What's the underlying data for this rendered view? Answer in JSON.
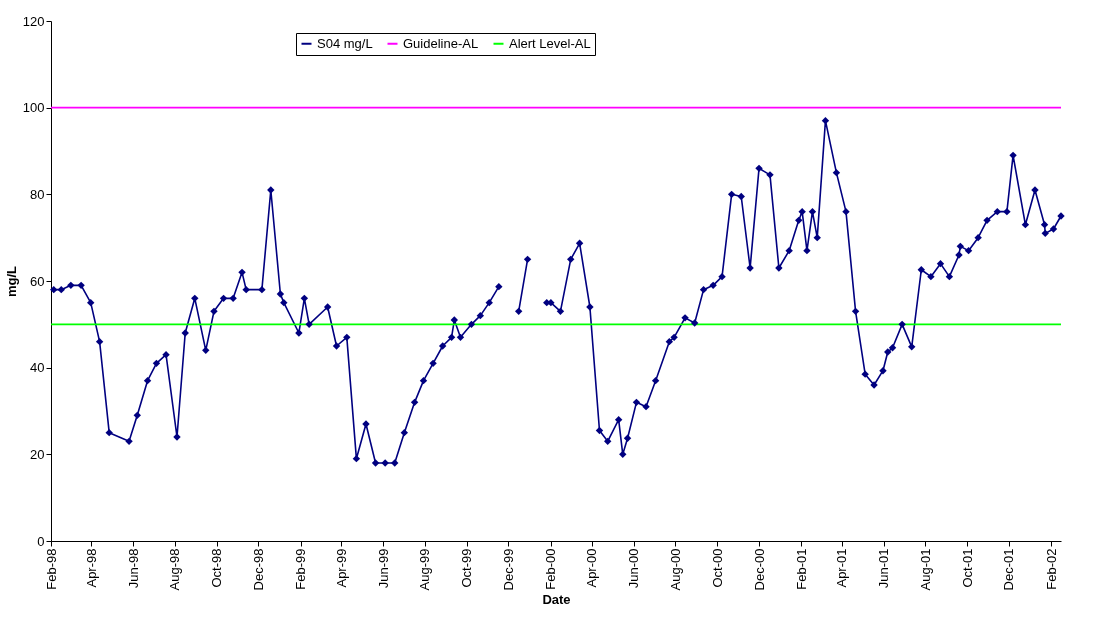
{
  "chart_data": {
    "type": "line",
    "xlabel": "Date",
    "ylabel": "mg/L",
    "xlim": [
      "1998-02-01",
      "2002-02-15"
    ],
    "ylim": [
      0,
      120
    ],
    "yticks": [
      0,
      20,
      40,
      60,
      80,
      100,
      120
    ],
    "xticks": [
      {
        "value": "1998-02-01",
        "label": "Feb-98"
      },
      {
        "value": "1998-04-01",
        "label": "Apr-98"
      },
      {
        "value": "1998-06-01",
        "label": "Jun-98"
      },
      {
        "value": "1998-08-01",
        "label": "Aug-98"
      },
      {
        "value": "1998-10-01",
        "label": "Oct-98"
      },
      {
        "value": "1998-12-01",
        "label": "Dec-98"
      },
      {
        "value": "1999-02-01",
        "label": "Feb-99"
      },
      {
        "value": "1999-04-01",
        "label": "Apr-99"
      },
      {
        "value": "1999-06-01",
        "label": "Jun-99"
      },
      {
        "value": "1999-08-01",
        "label": "Aug-99"
      },
      {
        "value": "1999-10-01",
        "label": "Oct-99"
      },
      {
        "value": "1999-12-01",
        "label": "Dec-99"
      },
      {
        "value": "2000-02-01",
        "label": "Feb-00"
      },
      {
        "value": "2000-04-01",
        "label": "Apr-00"
      },
      {
        "value": "2000-06-01",
        "label": "Jun-00"
      },
      {
        "value": "2000-08-01",
        "label": "Aug-00"
      },
      {
        "value": "2000-10-01",
        "label": "Oct-00"
      },
      {
        "value": "2000-12-01",
        "label": "Dec-00"
      },
      {
        "value": "2001-02-01",
        "label": "Feb-01"
      },
      {
        "value": "2001-04-01",
        "label": "Apr-01"
      },
      {
        "value": "2001-06-01",
        "label": "Jun-01"
      },
      {
        "value": "2001-08-01",
        "label": "Aug-01"
      },
      {
        "value": "2001-10-01",
        "label": "Oct-01"
      },
      {
        "value": "2001-12-01",
        "label": "Dec-01"
      },
      {
        "value": "2002-02-01",
        "label": "Feb-02"
      }
    ],
    "grid": false,
    "legend": "top",
    "marker": "diamond",
    "line_style": "solid",
    "series": [
      {
        "name": "S04 mg/L",
        "color": "#000080",
        "x": [
          "1998-02-05",
          "1998-02-16",
          "1998-03-02",
          "1998-03-17",
          "1998-03-31",
          "1998-04-13",
          "1998-04-27",
          "1998-05-26",
          "1998-06-07",
          "1998-06-22",
          "1998-07-05",
          "1998-07-19",
          "1998-08-04",
          "1998-08-16",
          "1998-08-30",
          "1998-09-15",
          "1998-09-27",
          "1998-10-11",
          "1998-10-25",
          "1998-11-07",
          "1998-11-13",
          "1998-12-06",
          "1998-12-19",
          "1999-01-02",
          "1999-01-07",
          "1999-01-29",
          "1999-02-06",
          "1999-02-13",
          "1999-03-12",
          "1999-03-25",
          "1999-04-09",
          "1999-04-23",
          "1999-05-07",
          "1999-05-21",
          "1999-06-04",
          "1999-06-18",
          "1999-07-02",
          "1999-07-17",
          "1999-07-30",
          "1999-08-13",
          "1999-08-27",
          "1999-09-09",
          "1999-09-13",
          "1999-09-22",
          "1999-10-08",
          "1999-10-21",
          "1999-11-03",
          "1999-11-17",
          "1999-12-01",
          "1999-12-16",
          "1999-12-29",
          "2000-01-12",
          "2000-01-26",
          "2000-02-01",
          "2000-02-15",
          "2000-03-01",
          "2000-03-14",
          "2000-03-29",
          "2000-04-12",
          "2000-04-24",
          "2000-05-10",
          "2000-05-16",
          "2000-05-23",
          "2000-06-05",
          "2000-06-19",
          "2000-07-03",
          "2000-07-23",
          "2000-07-30",
          "2000-08-15",
          "2000-08-29",
          "2000-09-11",
          "2000-09-25",
          "2000-10-08",
          "2000-10-22",
          "2000-11-05",
          "2000-11-18",
          "2000-12-01",
          "2000-12-17",
          "2000-12-30",
          "2001-01-14",
          "2001-01-28",
          "2001-02-02",
          "2001-02-09",
          "2001-02-17",
          "2001-02-24",
          "2001-03-08",
          "2001-03-24",
          "2001-04-07",
          "2001-04-21",
          "2001-05-05",
          "2001-05-18",
          "2001-05-31",
          "2001-06-07",
          "2001-06-14",
          "2001-06-28",
          "2001-07-12",
          "2001-07-26",
          "2001-08-09",
          "2001-08-23",
          "2001-09-05",
          "2001-09-19",
          "2001-09-21",
          "2001-10-03",
          "2001-10-17",
          "2001-10-30",
          "2001-11-14",
          "2001-11-28",
          "2001-12-07",
          "2001-12-25",
          "2002-01-08",
          "2002-01-22",
          "2002-01-23",
          "2002-02-04",
          "2002-02-15"
        ],
        "values": [
          58,
          58,
          59,
          59,
          55,
          46,
          25,
          23,
          29,
          37,
          41,
          43,
          24,
          48,
          56,
          44,
          53,
          56,
          56,
          62,
          58,
          58,
          81,
          57,
          55,
          48,
          56,
          50,
          54,
          45,
          47,
          19,
          27,
          18,
          18,
          18,
          25,
          32,
          37,
          41,
          45,
          47,
          51,
          47,
          50,
          52,
          55,
          58.7,
          null,
          53,
          65,
          null,
          55,
          55,
          53,
          65,
          68.7,
          54,
          25.5,
          23,
          28,
          20,
          23.7,
          32,
          31,
          37,
          46,
          47,
          51.5,
          50.3,
          58,
          59,
          61,
          80,
          79.5,
          63,
          86,
          84.5,
          63,
          67,
          74,
          76,
          67,
          76,
          70,
          97,
          85,
          76,
          53,
          38.5,
          36,
          39.3,
          43.6,
          44.6,
          50,
          44.8,
          62.6,
          61,
          64,
          61,
          66,
          68,
          67,
          70,
          74,
          76,
          76,
          89,
          73,
          81,
          73,
          71,
          72,
          75
        ]
      },
      {
        "name": "Guideline-AL",
        "color": "#ff00ff",
        "marker": "none",
        "x": [
          "1998-02-01",
          "2002-02-15"
        ],
        "values": [
          100,
          100
        ]
      },
      {
        "name": "Alert Level-AL",
        "color": "#00ff00",
        "marker": "none",
        "x": [
          "1998-02-01",
          "2002-02-15"
        ],
        "values": [
          50,
          50
        ]
      }
    ]
  }
}
